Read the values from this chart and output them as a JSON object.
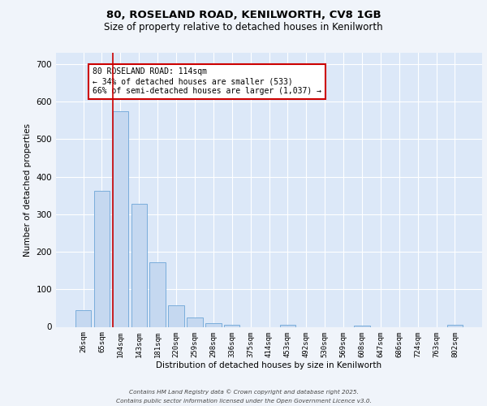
{
  "title_line1": "80, ROSELAND ROAD, KENILWORTH, CV8 1GB",
  "title_line2": "Size of property relative to detached houses in Kenilworth",
  "xlabel": "Distribution of detached houses by size in Kenilworth",
  "ylabel": "Number of detached properties",
  "categories": [
    "26sqm",
    "65sqm",
    "104sqm",
    "143sqm",
    "181sqm",
    "220sqm",
    "259sqm",
    "298sqm",
    "336sqm",
    "375sqm",
    "414sqm",
    "453sqm",
    "492sqm",
    "530sqm",
    "569sqm",
    "608sqm",
    "647sqm",
    "686sqm",
    "724sqm",
    "763sqm",
    "802sqm"
  ],
  "values": [
    44,
    362,
    575,
    328,
    172,
    57,
    24,
    10,
    6,
    0,
    0,
    5,
    0,
    0,
    0,
    4,
    0,
    0,
    0,
    0,
    5
  ],
  "bar_color": "#c5d8f0",
  "bar_edge_color": "#7aaddb",
  "vline_color": "#cc0000",
  "annotation_text": "80 ROSELAND ROAD: 114sqm\n← 34% of detached houses are smaller (533)\n66% of semi-detached houses are larger (1,037) →",
  "annotation_box_color": "#ffffff",
  "annotation_box_edge": "#cc0000",
  "ylim": [
    0,
    730
  ],
  "yticks": [
    0,
    100,
    200,
    300,
    400,
    500,
    600,
    700
  ],
  "bg_color": "#dce8f8",
  "grid_color": "#ffffff",
  "fig_bg_color": "#f0f4fa",
  "footer_line1": "Contains HM Land Registry data © Crown copyright and database right 2025.",
  "footer_line2": "Contains public sector information licensed under the Open Government Licence v3.0."
}
